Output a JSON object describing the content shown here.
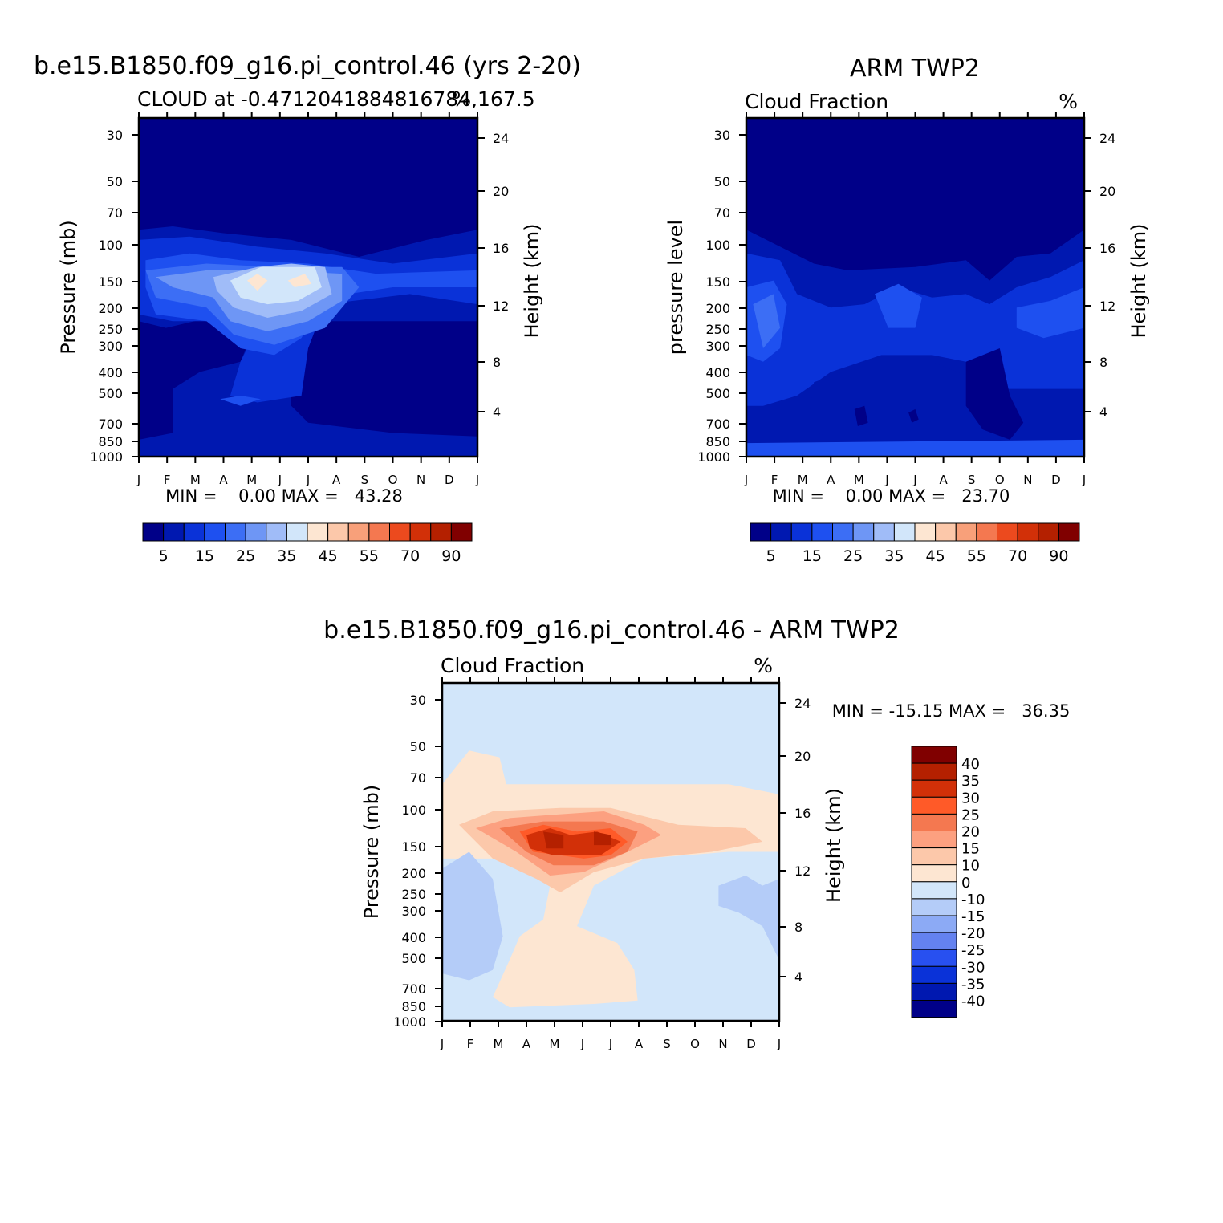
{
  "chart_data": [
    {
      "type": "heatmap",
      "title": "b.e15.B1850.f09_g16.pi_control.46 (yrs 2-20)",
      "subtitle_left": "CLOUD at -0.4712041884816784,167.5",
      "subtitle_right": "%",
      "ylabel": "Pressure (mb)",
      "ylabel_right": "Height (km)",
      "stats": "MIN =    0.00 MAX =   43.28",
      "x_ticks": [
        "J",
        "F",
        "M",
        "A",
        "M",
        "J",
        "J",
        "A",
        "S",
        "O",
        "N",
        "D",
        "J"
      ],
      "y_ticks": [
        "30",
        "50",
        "70",
        "100",
        "150",
        "200",
        "250",
        "300",
        "400",
        "500",
        "700",
        "850",
        "1000"
      ],
      "y2_ticks": [
        "24",
        "20",
        "16",
        "12",
        "8",
        "4"
      ],
      "colorbar_levels": [
        5,
        10,
        15,
        20,
        25,
        30,
        35,
        40,
        45,
        50,
        55,
        60,
        70,
        80,
        90
      ],
      "colorbar_labels": [
        "5",
        "15",
        "25",
        "35",
        "45",
        "55",
        "70",
        "90"
      ],
      "colorbar_colors": [
        "#000088",
        "#0018b0",
        "#0a32d8",
        "#1e50f0",
        "#3c6ef5",
        "#6e96f5",
        "#a0bcf8",
        "#d2e6fa",
        "#fde6d2",
        "#fcc8aa",
        "#f8a07a",
        "#f47850",
        "#ec4a1e",
        "#d23008",
        "#b42000",
        "#800000"
      ]
    },
    {
      "type": "heatmap",
      "title": "ARM TWP2",
      "subtitle_left": "Cloud Fraction",
      "subtitle_right": "%",
      "ylabel": "pressure level",
      "ylabel_right": "Height (km)",
      "stats": "MIN =    0.00 MAX =   23.70",
      "x_ticks": [
        "J",
        "F",
        "M",
        "A",
        "M",
        "J",
        "J",
        "A",
        "S",
        "O",
        "N",
        "D",
        "J"
      ],
      "y_ticks": [
        "30",
        "50",
        "70",
        "100",
        "150",
        "200",
        "250",
        "300",
        "400",
        "500",
        "700",
        "850",
        "1000"
      ],
      "y2_ticks": [
        "24",
        "20",
        "16",
        "12",
        "8",
        "4"
      ],
      "colorbar_levels": [
        5,
        10,
        15,
        20,
        25,
        30,
        35,
        40,
        45,
        50,
        55,
        60,
        70,
        80,
        90
      ],
      "colorbar_labels": [
        "5",
        "15",
        "25",
        "35",
        "45",
        "55",
        "70",
        "90"
      ],
      "colorbar_colors": [
        "#000088",
        "#0018b0",
        "#0a32d8",
        "#1e50f0",
        "#3c6ef5",
        "#6e96f5",
        "#a0bcf8",
        "#d2e6fa",
        "#fde6d2",
        "#fcc8aa",
        "#f8a07a",
        "#f47850",
        "#ec4a1e",
        "#d23008",
        "#b42000",
        "#800000"
      ]
    },
    {
      "type": "heatmap",
      "title": "b.e15.B1850.f09_g16.pi_control.46 - ARM TWP2",
      "subtitle_left": "Cloud Fraction",
      "subtitle_right": "%",
      "ylabel": "Pressure (mb)",
      "ylabel_right": "Height (km)",
      "stats": "MIN = -15.15 MAX =   36.35",
      "x_ticks": [
        "J",
        "F",
        "M",
        "A",
        "M",
        "J",
        "J",
        "A",
        "S",
        "O",
        "N",
        "D",
        "J"
      ],
      "y_ticks": [
        "30",
        "50",
        "70",
        "100",
        "150",
        "200",
        "250",
        "300",
        "400",
        "500",
        "700",
        "850",
        "1000"
      ],
      "y2_ticks": [
        "24",
        "20",
        "16",
        "12",
        "8",
        "4"
      ],
      "colorbar_labels": [
        "40",
        "35",
        "30",
        "25",
        "20",
        "15",
        "10",
        "0",
        "-10",
        "-15",
        "-20",
        "-25",
        "-30",
        "-35",
        "-40"
      ],
      "colorbar_colors": [
        "#800000",
        "#b42000",
        "#d23008",
        "#ff5a28",
        "#f47850",
        "#fca080",
        "#fcc8aa",
        "#fde6d2",
        "#d2e6fa",
        "#b4ccf8",
        "#8caaf5",
        "#6482f0",
        "#2850f0",
        "#0a32d8",
        "#0018b0",
        "#000088"
      ]
    }
  ],
  "ui_colors": {
    "deep_blue": "#000088",
    "diff_background": "#d2e6fa",
    "diff_positive_light": "#fde6d2"
  }
}
